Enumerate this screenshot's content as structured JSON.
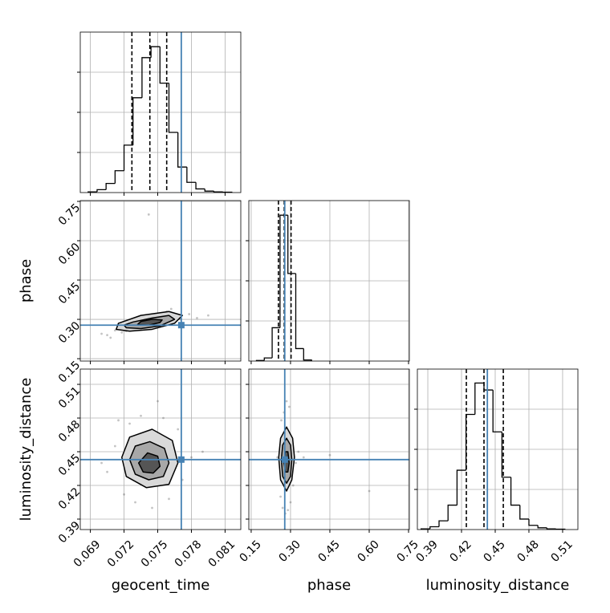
{
  "chart_data": {
    "type": "corner",
    "grid": true,
    "color": "#000000",
    "truth_color": "#4682b4",
    "parameters": [
      {
        "name": "geocent_time",
        "lim": [
          0.0681,
          0.0824
        ],
        "ticks": [
          0.069,
          0.072,
          0.075,
          0.078,
          0.081
        ],
        "truth": 0.0771,
        "quantiles": [
          0.0727,
          0.0743,
          0.0758
        ],
        "hist": {
          "bins": [
            0.0688,
            0.0696,
            0.0704,
            0.0712,
            0.072,
            0.0728,
            0.0736,
            0.0744,
            0.0752,
            0.076,
            0.0768,
            0.0776,
            0.0784,
            0.0792,
            0.08,
            0.0808,
            0.0816
          ],
          "counts": [
            2,
            8,
            25,
            60,
            130,
            260,
            370,
            400,
            300,
            165,
            70,
            28,
            10,
            4,
            2,
            1
          ],
          "ylim": [
            0,
            440
          ]
        }
      },
      {
        "name": "phase",
        "lim": [
          0.141,
          0.753
        ],
        "ticks": [
          0.15,
          {
            "value": 0.3,
            "label": "0.30"
          },
          0.45,
          {
            "value": 0.6,
            "label": "0.60"
          },
          0.75
        ],
        "truth": 0.278,
        "quantiles": [
          0.254,
          0.276,
          0.302
        ],
        "hist": {
          "bins": [
            0.17,
            0.2,
            0.23,
            0.26,
            0.29,
            0.32,
            0.35,
            0.38
          ],
          "counts": [
            3,
            15,
            160,
            700,
            420,
            60,
            5
          ],
          "ylim": [
            0,
            770
          ]
        }
      },
      {
        "name": "luminosity_distance",
        "lim": [
          0.3807,
          0.5236
        ],
        "ticks": [
          0.39,
          0.42,
          0.45,
          0.48,
          0.51
        ],
        "truth": 0.443,
        "quantiles": [
          0.4243,
          0.44,
          0.4572
        ],
        "hist": {
          "bins": [
            0.384,
            0.392,
            0.4,
            0.408,
            0.416,
            0.424,
            0.432,
            0.44,
            0.448,
            0.456,
            0.464,
            0.472,
            0.48,
            0.488,
            0.496,
            0.504,
            0.512
          ],
          "counts": [
            2,
            8,
            25,
            70,
            170,
            330,
            420,
            400,
            280,
            150,
            70,
            30,
            12,
            5,
            2,
            1
          ],
          "ylim": [
            0,
            460
          ]
        }
      }
    ],
    "panels": [
      {
        "x": 0,
        "y": 1,
        "points": {
          "x": [
            0.07,
            0.0705,
            0.0712,
            0.0718,
            0.0728,
            0.0738,
            0.0748,
            0.0758,
            0.077,
            0.0778,
            0.0785,
            0.0795,
            0.0708,
            0.0762,
            0.0742,
            0.0722
          ],
          "y": [
            0.245,
            0.24,
            0.258,
            0.25,
            0.275,
            0.31,
            0.32,
            0.33,
            0.3,
            0.32,
            0.305,
            0.315,
            0.23,
            0.34,
            0.7,
            0.255
          ]
        },
        "contours": [
          {
            "x": [
              0.0713,
              0.0725,
              0.0745,
              0.0765,
              0.0772,
              0.076,
              0.0735,
              0.0715
            ],
            "y": [
              0.262,
              0.255,
              0.262,
              0.285,
              0.315,
              0.33,
              0.315,
              0.285
            ]
          },
          {
            "x": [
              0.0722,
              0.0735,
              0.0752,
              0.0765,
              0.076,
              0.0745,
              0.0728,
              0.072
            ],
            "y": [
              0.268,
              0.265,
              0.275,
              0.3,
              0.315,
              0.305,
              0.29,
              0.278
            ]
          },
          {
            "x": [
              0.0732,
              0.0742,
              0.0752,
              0.0754,
              0.0745,
              0.0735
            ],
            "y": [
              0.28,
              0.278,
              0.288,
              0.298,
              0.3,
              0.292
            ]
          }
        ]
      },
      {
        "x": 0,
        "y": 2,
        "points": {
          "x": [
            0.07,
            0.0705,
            0.0712,
            0.072,
            0.073,
            0.0745,
            0.076,
            0.0772,
            0.078,
            0.079,
            0.0715,
            0.0735,
            0.0755,
            0.0768,
            0.0725,
            0.075
          ],
          "y": [
            0.44,
            0.432,
            0.455,
            0.412,
            0.405,
            0.4,
            0.408,
            0.425,
            0.445,
            0.45,
            0.478,
            0.482,
            0.48,
            0.47,
            0.475,
            0.495
          ]
        },
        "contours": [
          {
            "x": [
              0.0718,
              0.0722,
              0.074,
              0.076,
              0.0768,
              0.0763,
              0.0745,
              0.0725
            ],
            "y": [
              0.445,
              0.428,
              0.418,
              0.421,
              0.44,
              0.46,
              0.47,
              0.463
            ]
          },
          {
            "x": [
              0.0725,
              0.073,
              0.0742,
              0.0755,
              0.076,
              0.0756,
              0.0743,
              0.073
            ],
            "y": [
              0.443,
              0.43,
              0.425,
              0.428,
              0.44,
              0.453,
              0.459,
              0.455
            ]
          },
          {
            "x": [
              0.0733,
              0.0737,
              0.0746,
              0.0752,
              0.075,
              0.0741
            ],
            "y": [
              0.44,
              0.432,
              0.431,
              0.437,
              0.446,
              0.449
            ]
          }
        ]
      },
      {
        "x": 1,
        "y": 2,
        "points": {
          "x": [
            0.25,
            0.262,
            0.27,
            0.28,
            0.29,
            0.3,
            0.31,
            0.32,
            0.33,
            0.35,
            0.275,
            0.295,
            0.285,
            0.45,
            0.6,
            0.265
          ],
          "y": [
            0.445,
            0.41,
            0.4,
            0.395,
            0.398,
            0.405,
            0.42,
            0.44,
            0.45,
            0.445,
            0.485,
            0.49,
            0.495,
            0.447,
            0.415,
            0.478
          ]
        },
        "contours": [
          {
            "x": [
              0.255,
              0.262,
              0.285,
              0.305,
              0.315,
              0.308,
              0.285,
              0.262
            ],
            "y": [
              0.445,
              0.425,
              0.415,
              0.425,
              0.445,
              0.462,
              0.472,
              0.462
            ]
          },
          {
            "x": [
              0.265,
              0.27,
              0.285,
              0.3,
              0.305,
              0.3,
              0.285,
              0.27
            ],
            "y": [
              0.443,
              0.428,
              0.422,
              0.428,
              0.443,
              0.456,
              0.462,
              0.456
            ]
          },
          {
            "x": [
              0.275,
              0.28,
              0.29,
              0.295,
              0.29,
              0.28
            ],
            "y": [
              0.44,
              0.432,
              0.432,
              0.44,
              0.45,
              0.45
            ]
          }
        ]
      }
    ]
  }
}
